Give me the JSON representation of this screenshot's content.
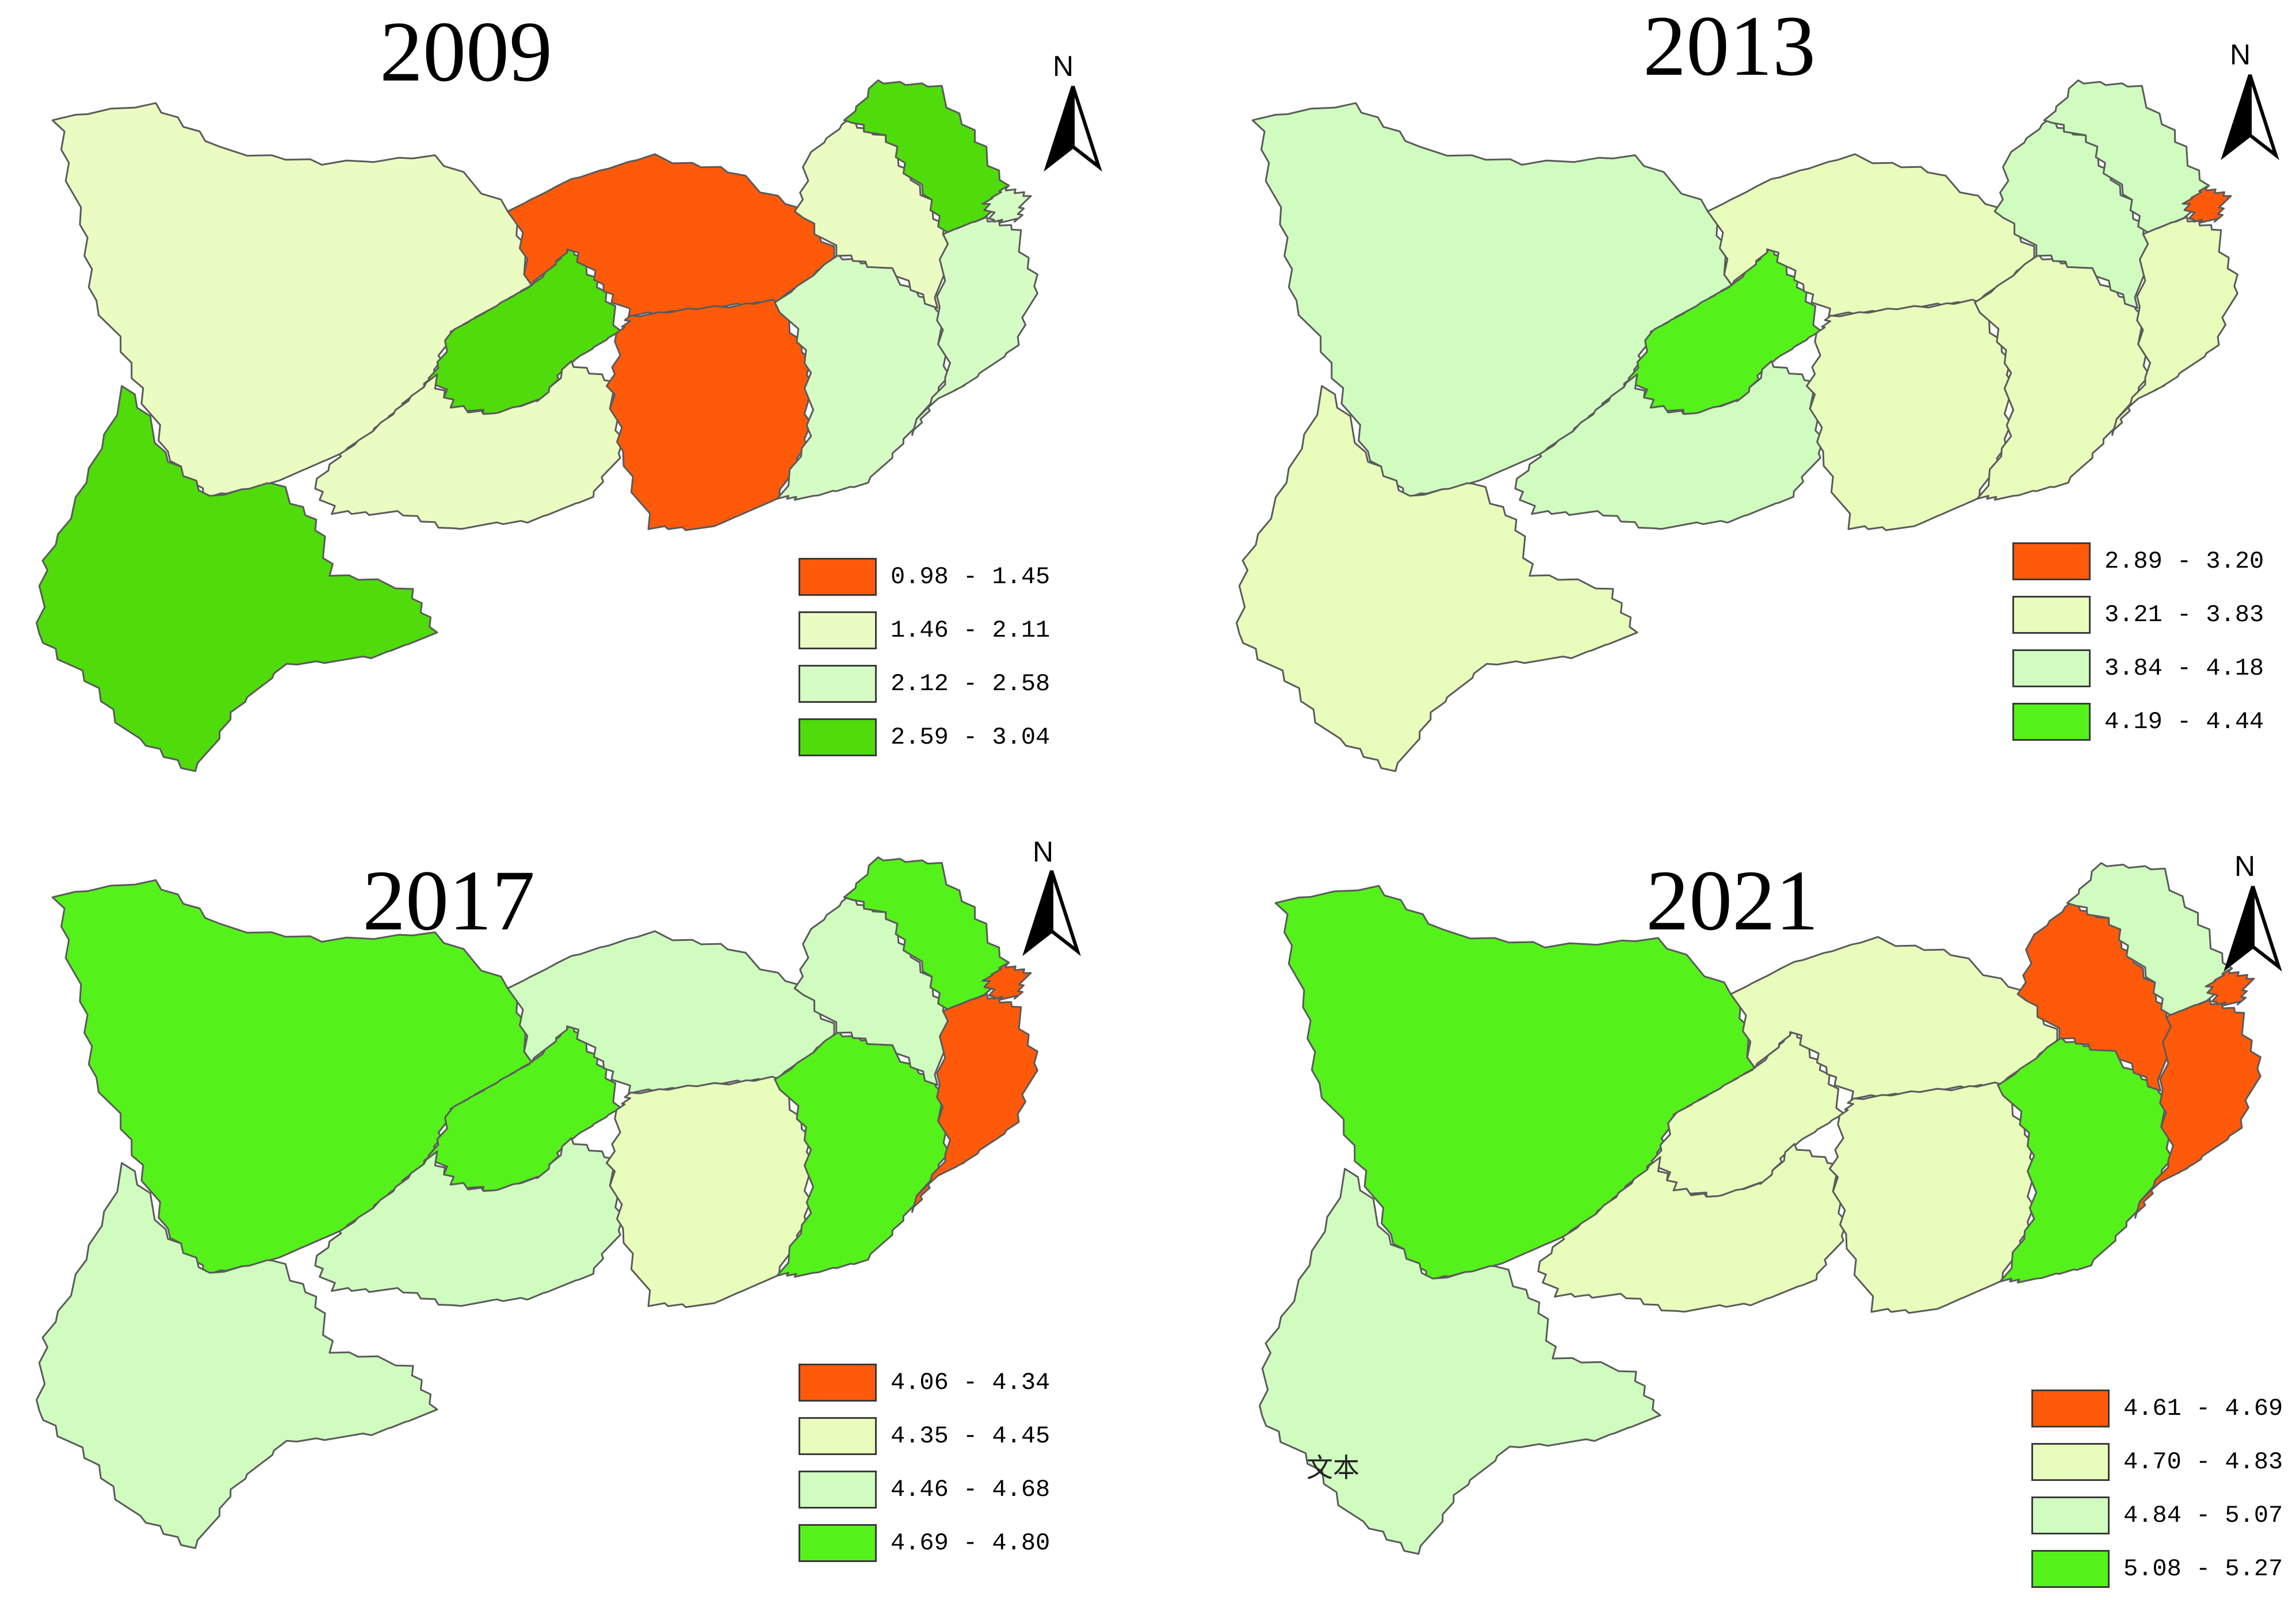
{
  "panels": [
    {
      "year": "2009",
      "legend": [
        {
          "range": "0.98 - 1.45",
          "color": "#ff5a0a"
        },
        {
          "range": "1.46 - 2.11",
          "color": "#ebfcc2"
        },
        {
          "range": "2.12 - 2.58",
          "color": "#d6fcc6"
        },
        {
          "range": "2.59 - 3.04",
          "color": "#4fdc0a"
        }
      ],
      "region_classes": {
        "sichuan": 1,
        "yunnan": 3,
        "guizhou": 1,
        "chongqing": 3,
        "hubei": 0,
        "hunan": 0,
        "jiangxi": 2,
        "anhui": 1,
        "jiangsu": 3,
        "zhejiang": 2,
        "shanghai": 2
      }
    },
    {
      "year": "2013",
      "legend": [
        {
          "range": "2.89 - 3.20",
          "color": "#ff5a0a"
        },
        {
          "range": "3.21 - 3.83",
          "color": "#e8fcbc"
        },
        {
          "range": "3.84 - 4.18",
          "color": "#d0fcc0"
        },
        {
          "range": "4.19 - 4.44",
          "color": "#54f21a"
        }
      ],
      "region_classes": {
        "sichuan": 2,
        "yunnan": 1,
        "guizhou": 2,
        "chongqing": 3,
        "hubei": 1,
        "hunan": 1,
        "jiangxi": 1,
        "anhui": 2,
        "jiangsu": 2,
        "zhejiang": 1,
        "shanghai": 0
      }
    },
    {
      "year": "2017",
      "legend": [
        {
          "range": "4.06 - 4.34",
          "color": "#ff5a0a"
        },
        {
          "range": "4.35 - 4.45",
          "color": "#e8fcbc"
        },
        {
          "range": "4.46 - 4.68",
          "color": "#d0fcc0"
        },
        {
          "range": "4.69 - 4.80",
          "color": "#54f21a"
        }
      ],
      "region_classes": {
        "sichuan": 3,
        "yunnan": 2,
        "guizhou": 2,
        "chongqing": 3,
        "hubei": 2,
        "hunan": 1,
        "jiangxi": 3,
        "anhui": 2,
        "jiangsu": 3,
        "zhejiang": 0,
        "shanghai": 0
      }
    },
    {
      "year": "2021",
      "legend": [
        {
          "range": "4.61 - 4.69",
          "color": "#ff5a0a"
        },
        {
          "range": "4.70 - 4.83",
          "color": "#e8fcbc"
        },
        {
          "range": "4.84 - 5.07",
          "color": "#d0fcc0"
        },
        {
          "range": "5.08 - 5.27",
          "color": "#54f21a"
        }
      ],
      "region_classes": {
        "sichuan": 3,
        "yunnan": 2,
        "guizhou": 1,
        "chongqing": 1,
        "hubei": 1,
        "hunan": 1,
        "jiangxi": 3,
        "anhui": 0,
        "jiangsu": 2,
        "zhejiang": 0,
        "shanghai": 0
      },
      "stray_text": "文本"
    }
  ],
  "north_arrow": {
    "label": "N",
    "icon": "north-arrow-icon"
  },
  "border_color": "#5a5a5a"
}
